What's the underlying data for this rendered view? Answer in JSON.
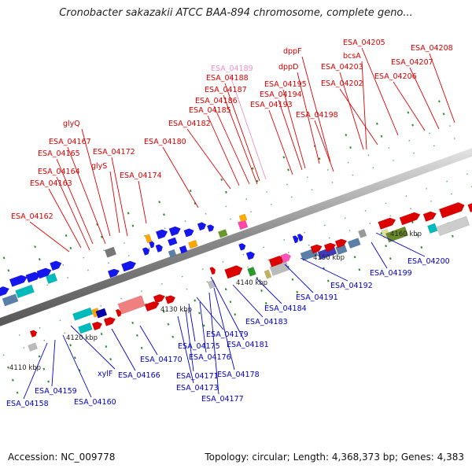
{
  "title": "Cronobacter sakazakii ATCC BAA-894 chromosome, complete geno...",
  "footer": {
    "accession": "Accession: NC_009778",
    "summary": "Topology: circular; Length: 4,368,373 bp; Genes: 4,383"
  },
  "scale_labels": [
    "4110 kbp",
    "4120 kbp",
    "4130 kbp",
    "4140 kbp",
    "4150 kbp",
    "4160 kbp"
  ],
  "colors": {
    "forward_label": "#dd0000",
    "reverse_label": "#0000cc",
    "highlight_label": "#f090c8"
  },
  "forward_genes": [
    "ESA_04162",
    "ESA_04163",
    "ESA_04164",
    "ESA_04165",
    "ESA_04167",
    "glyQ",
    "glyS",
    "ESA_04172",
    "ESA_04174",
    "ESA_04180",
    "ESA_04182",
    "ESA_04185",
    "ESA_04186",
    "ESA_04187",
    "ESA_04188",
    "ESA_04189",
    "ESA_04193",
    "ESA_04194",
    "ESA_04195",
    "dppD",
    "dppF",
    "ESA_04198",
    "ESA_04202",
    "ESA_04203",
    "bcsA",
    "ESA_04205",
    "ESA_04206",
    "ESA_04207",
    "ESA_04208"
  ],
  "reverse_genes": [
    "ESA_04158",
    "ESA_04159",
    "ESA_04160",
    "xylF",
    "ESA_04166",
    "ESA_04170",
    "ESA_04171",
    "ESA_04173",
    "ESA_04175",
    "ESA_04176",
    "ESA_04177",
    "ESA_04178",
    "ESA_04179",
    "ESA_04181",
    "ESA_04183",
    "ESA_04184",
    "ESA_04191",
    "ESA_04192",
    "ESA_04199",
    "ESA_04200"
  ]
}
